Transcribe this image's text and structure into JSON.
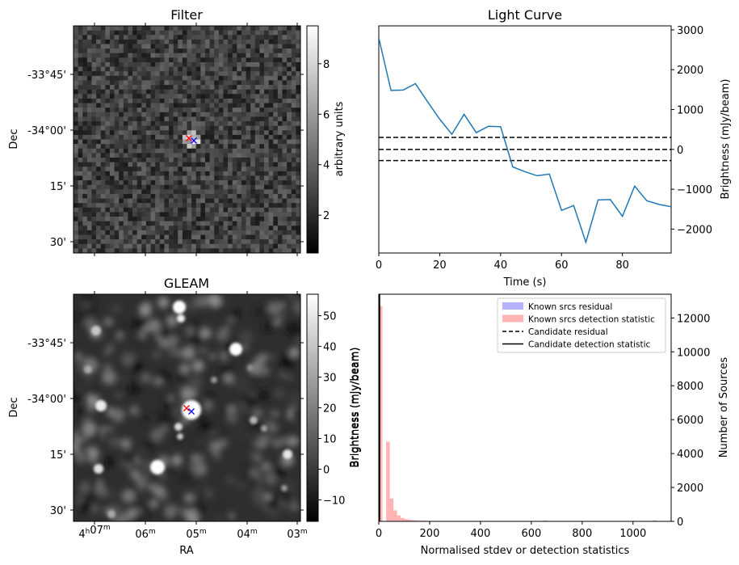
{
  "panels": {
    "filter": {
      "title": "Filter",
      "ylabel": "Dec",
      "colorbar_label": "arbitrary units",
      "colorbar_ticks": [
        "2",
        "4",
        "6",
        "8"
      ],
      "dec_ticks": [
        "-33°45'",
        "-34°00'",
        "15'",
        "30'"
      ]
    },
    "gleam": {
      "title": "GLEAM",
      "ylabel": "Dec",
      "xlabel": "RA",
      "colorbar_label": "Brightness (mJy/beam)",
      "colorbar_ticks": [
        "−10",
        "0",
        "10",
        "20",
        "30",
        "40",
        "50"
      ],
      "dec_ticks": [
        "-33°45'",
        "-34°00'",
        "15'",
        "30'"
      ],
      "ra_ticks": [
        {
          "main": "4ʰ07ᵐ",
          "parts": [
            "4",
            "h",
            "07",
            "m"
          ]
        },
        {
          "main": "06ᵐ",
          "parts": [
            "",
            "",
            "06",
            "m"
          ]
        },
        {
          "main": "05ᵐ",
          "parts": [
            "",
            "",
            "05",
            "m"
          ]
        },
        {
          "main": "04ᵐ",
          "parts": [
            "",
            "",
            "04",
            "m"
          ]
        },
        {
          "main": "03ᵐ",
          "parts": [
            "",
            "",
            "03",
            "m"
          ]
        }
      ]
    },
    "lightcurve": {
      "title": "Light Curve",
      "xlabel": "Time (s)",
      "ylabel": "Brightness (mJy/beam)"
    },
    "histogram": {
      "xlabel": "Normalised stdev or detection statistics",
      "ylabel_left": "Brightness (mJy/beam)",
      "ylabel_right": "Number of Sources",
      "legend": [
        {
          "label": "Known srcs residual",
          "kind": "patch",
          "color": "#b3b3ff"
        },
        {
          "label": "Known srcs detection statistic",
          "kind": "patch",
          "color": "#ffb3b3"
        },
        {
          "label": "Candidate residual",
          "kind": "dashed",
          "color": "#000000"
        },
        {
          "label": "Candidate detection statistic",
          "kind": "solid",
          "color": "#000000"
        }
      ]
    }
  },
  "chart_data": [
    {
      "type": "heatmap",
      "title": "Filter",
      "ylabel": "Dec",
      "colorbar": {
        "label": "arbitrary units",
        "range": [
          0.5,
          9.5
        ],
        "ticks": [
          2,
          4,
          6,
          8
        ],
        "cmap": "gray"
      },
      "markers": [
        {
          "symbol": "x",
          "color": "#ff0000"
        },
        {
          "symbol": "x",
          "color": "#0000ff"
        }
      ]
    },
    {
      "type": "line",
      "title": "Light Curve",
      "xlabel": "Time (s)",
      "ylabel": "Brightness (mJy/beam)",
      "xlim": [
        0,
        96
      ],
      "ylim": [
        -2600,
        3100
      ],
      "xticks": [
        0,
        20,
        40,
        60,
        80
      ],
      "yticks": [
        -2000,
        -1000,
        0,
        1000,
        2000,
        3000
      ],
      "y_axis_side": "right",
      "series": [
        {
          "color": "#1f77b4",
          "x": [
            0,
            4,
            8,
            12,
            16,
            20,
            24,
            28,
            32,
            36,
            40,
            44,
            48,
            52,
            56,
            60,
            64,
            68,
            72,
            76,
            80,
            84,
            88,
            92,
            96
          ],
          "y": [
            2800,
            1480,
            1490,
            1650,
            1200,
            760,
            380,
            880,
            420,
            580,
            570,
            -440,
            -560,
            -660,
            -620,
            -1530,
            -1410,
            -2330,
            -1270,
            -1260,
            -1680,
            -920,
            -1290,
            -1380,
            -1440
          ]
        }
      ],
      "hlines": [
        {
          "y": 300,
          "style": "dashed",
          "color": "#000000"
        },
        {
          "y": 0,
          "style": "dashed",
          "color": "#000000"
        },
        {
          "y": -280,
          "style": "dashed",
          "color": "#000000"
        }
      ]
    },
    {
      "type": "heatmap",
      "title": "GLEAM",
      "xlabel": "RA",
      "ylabel": "Dec",
      "colorbar": {
        "label": "Brightness (mJy/beam)",
        "range": [
          -17,
          57
        ],
        "ticks": [
          -10,
          0,
          10,
          20,
          30,
          40,
          50
        ],
        "cmap": "gray"
      },
      "markers": [
        {
          "symbol": "x",
          "color": "#ff0000"
        },
        {
          "symbol": "x",
          "color": "#0000ff"
        }
      ]
    },
    {
      "type": "bar",
      "xlabel": "Normalised stdev or detection statistics",
      "ylabel": "Number of Sources",
      "xlim": [
        0,
        1150
      ],
      "ylim": [
        0,
        13400
      ],
      "xticks": [
        0,
        200,
        400,
        600,
        800,
        1000
      ],
      "yticks": [
        0,
        2000,
        4000,
        6000,
        8000,
        10000,
        12000
      ],
      "y_axis_side": "right",
      "bin_width": 14.375,
      "series": [
        {
          "name": "Known srcs detection statistic",
          "color": "#ffb3b3",
          "bin_start": [
            0,
            14.4,
            28.8,
            43.1,
            57.5,
            71.9,
            86.3,
            100.6,
            115.0,
            129.4,
            143.8,
            158.1,
            172.5,
            186.9,
            201.3,
            215.6,
            230.0,
            244.4,
            258.8,
            273.1,
            287.5,
            301.9,
            316.3,
            330.6,
            345.0,
            359.4,
            373.8,
            388.1,
            402.5,
            416.9,
            431.3,
            445.6,
            460.0,
            474.4,
            488.8,
            503.1,
            517.5,
            531.9,
            546.3,
            560.6,
            575.0,
            589.4,
            603.8,
            618.1,
            632.5,
            646.9,
            661.3,
            675.6,
            690.0,
            704.4,
            718.8,
            733.1,
            747.5,
            761.9,
            776.3,
            790.6,
            805.0,
            819.4,
            833.8,
            848.1,
            862.5,
            876.9,
            891.3,
            905.6,
            920.0,
            934.4,
            948.8,
            963.1,
            977.5,
            991.9,
            1006.3,
            1020.6,
            1035.0,
            1049.4,
            1063.8,
            1078.1,
            1092.5,
            1106.9,
            1121.3,
            1135.6
          ],
          "values": [
            12700,
            0,
            4700,
            1350,
            650,
            350,
            200,
            130,
            90,
            70,
            55,
            45,
            35,
            30,
            25,
            22,
            20,
            18,
            15,
            14,
            12,
            11,
            10,
            9,
            8,
            8,
            7,
            7,
            6,
            6,
            6,
            5,
            5,
            5,
            4,
            4,
            4,
            4,
            3,
            3,
            3,
            3,
            3,
            3,
            3,
            60,
            2,
            2,
            2,
            2,
            2,
            2,
            2,
            2,
            2,
            2,
            2,
            2,
            2,
            2,
            2,
            2,
            2,
            2,
            2,
            2,
            2,
            2,
            2,
            2,
            2,
            2,
            2,
            2,
            2,
            60,
            2,
            2,
            2,
            2
          ]
        },
        {
          "name": "Known srcs residual",
          "color": "#b3b3ff",
          "values": []
        }
      ]
    }
  ]
}
